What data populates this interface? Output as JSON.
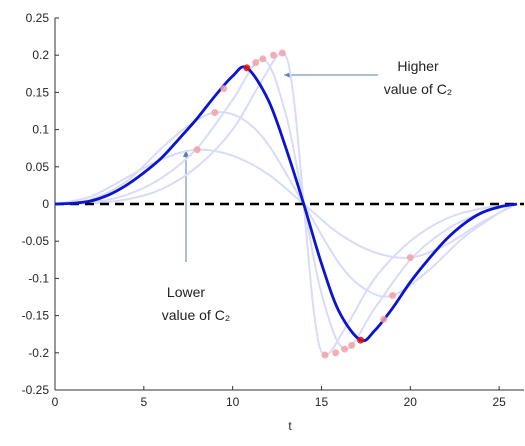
{
  "chart_data": {
    "type": "line",
    "xlabel": "t",
    "xlim": [
      0,
      26.4
    ],
    "xticks": [
      0,
      5,
      10,
      15,
      20,
      25
    ],
    "ylim": [
      -0.25,
      0.25
    ],
    "yticks": [
      -0.25,
      -0.2,
      -0.15,
      -0.1,
      -0.05,
      0,
      0.05,
      0.1,
      0.15,
      0.2,
      0.25
    ],
    "reference_line": {
      "y": 0,
      "color": "#000000"
    },
    "series": [
      {
        "color": "#d8dcf8",
        "x": [
          0,
          2,
          4,
          6,
          8,
          10,
          12,
          14,
          16,
          18,
          20,
          22,
          24,
          26
        ],
        "values": [
          0,
          0.01,
          0.035,
          0.06,
          0.073,
          0.065,
          0.04,
          0,
          -0.04,
          -0.065,
          -0.072,
          -0.055,
          -0.025,
          0
        ]
      },
      {
        "color": "#d8dcf8",
        "x": [
          0,
          2,
          4,
          6,
          7.5,
          9,
          10.5,
          12,
          14,
          16,
          17.5,
          19,
          21,
          23,
          25,
          26
        ],
        "values": [
          0,
          0.006,
          0.03,
          0.075,
          0.105,
          0.123,
          0.115,
          0.08,
          0,
          -0.08,
          -0.115,
          -0.123,
          -0.09,
          -0.045,
          -0.012,
          0
        ]
      },
      {
        "color": "#d8dcf8",
        "x": [
          0,
          2,
          4,
          6,
          8,
          10,
          11.7,
          13,
          14,
          15,
          16.3,
          18,
          20,
          22,
          24,
          26
        ],
        "values": [
          0,
          0.002,
          0.012,
          0.035,
          0.075,
          0.14,
          0.195,
          0.12,
          0,
          -0.12,
          -0.195,
          -0.14,
          -0.075,
          -0.035,
          -0.012,
          0
        ]
      },
      {
        "color": "#d8dcf8",
        "x": [
          0,
          2,
          4,
          6,
          8,
          10,
          11.5,
          12.8,
          13.4,
          14,
          14.6,
          15.2,
          16.5,
          18,
          20,
          22,
          24,
          26
        ],
        "values": [
          0,
          0.001,
          0.006,
          0.02,
          0.05,
          0.1,
          0.16,
          0.203,
          0.15,
          0,
          -0.15,
          -0.203,
          -0.16,
          -0.1,
          -0.05,
          -0.02,
          -0.006,
          0
        ]
      },
      {
        "color": "#0a14d2",
        "x": [
          0,
          1,
          2,
          3,
          4,
          5,
          6,
          7,
          8,
          9,
          10,
          10.8,
          12,
          13,
          14,
          15,
          16,
          17.2,
          18,
          19,
          20,
          21,
          22,
          23,
          24,
          25,
          26
        ],
        "values": [
          0,
          0.001,
          0.004,
          0.012,
          0.025,
          0.042,
          0.062,
          0.088,
          0.115,
          0.145,
          0.172,
          0.183,
          0.14,
          0.075,
          0,
          -0.08,
          -0.145,
          -0.183,
          -0.17,
          -0.14,
          -0.105,
          -0.075,
          -0.048,
          -0.027,
          -0.012,
          -0.004,
          0
        ]
      }
    ],
    "markers": [
      {
        "color": "#f2a0a8",
        "x": [
          8,
          9,
          9.5,
          11.3,
          11.7,
          12.3,
          12.8,
          15.2,
          15.8,
          16.3,
          16.7,
          18.5,
          19,
          20
        ],
        "values": [
          0.073,
          0.123,
          0.155,
          0.19,
          0.195,
          0.2,
          0.203,
          -0.203,
          -0.2,
          -0.195,
          -0.19,
          -0.155,
          -0.123,
          -0.072
        ]
      },
      {
        "color": "#e01010",
        "x": [
          10.8,
          17.2
        ],
        "values": [
          0.183,
          -0.183
        ]
      }
    ],
    "annotations": [
      {
        "lines": [
          "Higher",
          "value of C₂"
        ]
      },
      {
        "lines": [
          "Lower",
          "value of C₂"
        ]
      }
    ]
  }
}
